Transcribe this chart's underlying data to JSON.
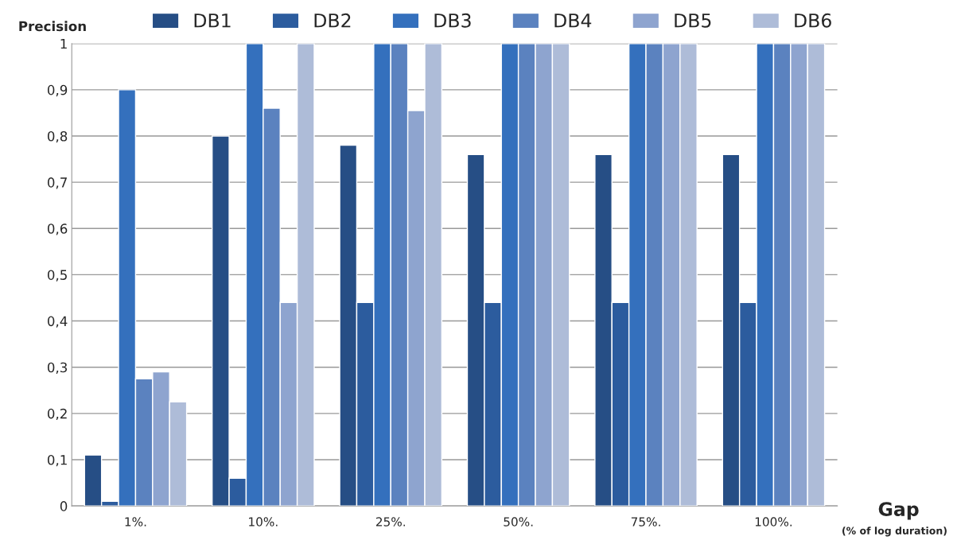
{
  "chart_data": {
    "type": "bar",
    "ylabel": "Precision",
    "xlabel": "Gap",
    "annotations": [
      "(% of log duration)"
    ],
    "categories": [
      "1%.",
      "10%.",
      "25%.",
      "50%.",
      "75%.",
      "100%."
    ],
    "series": [
      {
        "name": "DB1",
        "color": "#264e85",
        "values": [
          0.11,
          0.8,
          0.78,
          0.76,
          0.76,
          0.76
        ]
      },
      {
        "name": "DB2",
        "color": "#2c5c9e",
        "values": [
          0.01,
          0.06,
          0.44,
          0.44,
          0.44,
          0.44
        ]
      },
      {
        "name": "DB3",
        "color": "#3470bd",
        "values": [
          0.9,
          1,
          1,
          1,
          1,
          1
        ]
      },
      {
        "name": "DB4",
        "color": "#5b82bf",
        "values": [
          0.275,
          0.86,
          1,
          1,
          1,
          1
        ]
      },
      {
        "name": "DB5",
        "color": "#8ea4cf",
        "values": [
          0.29,
          0.44,
          0.855,
          1,
          1,
          1
        ]
      },
      {
        "name": "DB6",
        "color": "#aebcd8",
        "values": [
          0.225,
          1,
          1,
          1,
          1,
          1
        ]
      }
    ],
    "ylim": [
      0,
      1
    ],
    "yticks": [
      0,
      {
        "value": 0.1,
        "label": "0,1"
      },
      {
        "value": 0.2,
        "label": "0,2"
      },
      {
        "value": 0.3,
        "label": "0,3"
      },
      {
        "value": 0.4,
        "label": "0,4"
      },
      {
        "value": 0.5,
        "label": "0,5"
      },
      {
        "value": 0.6,
        "label": "0,6"
      },
      {
        "value": 0.7,
        "label": "0,7"
      },
      {
        "value": 0.8,
        "label": "0,8"
      },
      {
        "value": 0.9,
        "label": "0,9"
      },
      1
    ],
    "grid": "y",
    "legend": "top"
  }
}
